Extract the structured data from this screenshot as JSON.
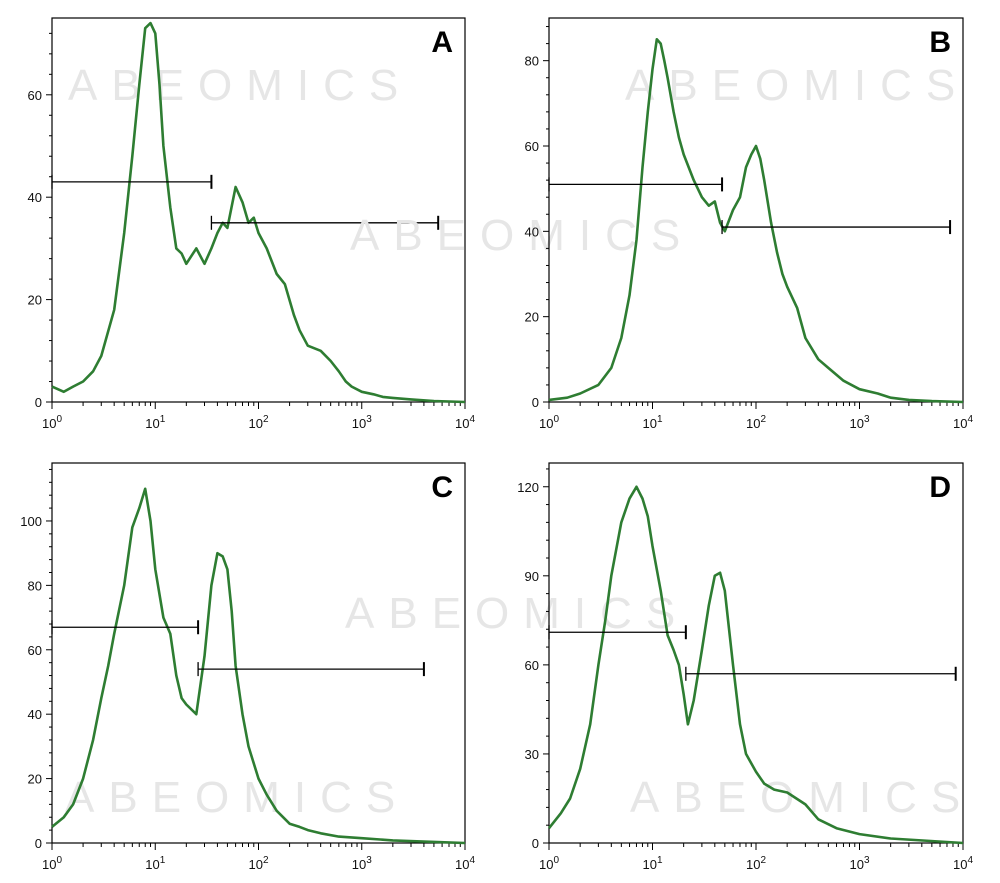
{
  "watermark": "ABEOMICS",
  "colors": {
    "curve": "#2e7d32",
    "axis": "#000000",
    "gate": "#000000"
  },
  "chart_data": [
    {
      "type": "line",
      "label": "A",
      "xscale": "log",
      "xlim": [
        1,
        10000
      ],
      "ylim": [
        0,
        75
      ],
      "xticks": [
        "10^0",
        "10^1",
        "10^2",
        "10^3",
        "10^4"
      ],
      "yticks": [
        0,
        20,
        40,
        60
      ],
      "series": [
        {
          "name": "histogram",
          "x": [
            1,
            1.3,
            1.6,
            2,
            2.5,
            3,
            4,
            5,
            6,
            7,
            8,
            9,
            10,
            11,
            12,
            14,
            16,
            18,
            20,
            25,
            30,
            35,
            40,
            45,
            50,
            60,
            70,
            80,
            90,
            100,
            120,
            150,
            180,
            220,
            250,
            300,
            400,
            500,
            600,
            700,
            800,
            1000,
            1300,
            1600,
            2000,
            3000,
            5000,
            10000
          ],
          "y": [
            3,
            2,
            3,
            4,
            6,
            9,
            18,
            33,
            48,
            62,
            73,
            74,
            72,
            62,
            50,
            38,
            30,
            29,
            27,
            30,
            27,
            30,
            33,
            35,
            34,
            42,
            39,
            35,
            36,
            33,
            30,
            25,
            23,
            17,
            14,
            11,
            10,
            8,
            6,
            4,
            3,
            2,
            1.5,
            1,
            0.8,
            0.5,
            0.2,
            0
          ]
        }
      ],
      "gates": [
        {
          "from": 1,
          "to": 35,
          "y": 43
        },
        {
          "from": 35,
          "to": 5500,
          "y": 35
        }
      ]
    },
    {
      "type": "line",
      "label": "B",
      "xscale": "log",
      "xlim": [
        1,
        10000
      ],
      "ylim": [
        0,
        90
      ],
      "xticks": [
        "10^0",
        "10^1",
        "10^2",
        "10^3",
        "10^4"
      ],
      "yticks": [
        0,
        20,
        40,
        60,
        80
      ],
      "series": [
        {
          "name": "histogram",
          "x": [
            1,
            1.5,
            2,
            3,
            4,
            5,
            6,
            7,
            8,
            9,
            10,
            11,
            12,
            13,
            14,
            16,
            18,
            20,
            25,
            30,
            35,
            40,
            45,
            50,
            60,
            70,
            80,
            90,
            100,
            110,
            120,
            140,
            160,
            180,
            200,
            250,
            300,
            400,
            500,
            700,
            1000,
            1500,
            2000,
            3000,
            5000,
            10000
          ],
          "y": [
            0.5,
            1,
            2,
            4,
            8,
            15,
            25,
            38,
            55,
            68,
            78,
            85,
            84,
            80,
            76,
            68,
            62,
            58,
            52,
            48,
            46,
            47,
            42,
            40,
            45,
            48,
            55,
            58,
            60,
            57,
            52,
            42,
            35,
            30,
            27,
            22,
            15,
            10,
            8,
            5,
            3,
            2,
            1,
            0.5,
            0.2,
            0
          ]
        }
      ],
      "gates": [
        {
          "from": 1,
          "to": 47,
          "y": 51
        },
        {
          "from": 47,
          "to": 7500,
          "y": 41
        }
      ]
    },
    {
      "type": "line",
      "label": "C",
      "xscale": "log",
      "xlim": [
        1,
        10000
      ],
      "ylim": [
        0,
        118
      ],
      "xticks": [
        "10^0",
        "10^1",
        "10^2",
        "10^3",
        "10^4"
      ],
      "yticks": [
        0,
        20,
        40,
        60,
        80,
        100
      ],
      "series": [
        {
          "name": "histogram",
          "x": [
            1,
            1.3,
            1.6,
            2,
            2.5,
            3,
            3.5,
            4,
            5,
            6,
            7,
            8,
            9,
            10,
            12,
            14,
            16,
            18,
            20,
            25,
            30,
            35,
            40,
            45,
            50,
            55,
            60,
            70,
            80,
            100,
            120,
            150,
            200,
            250,
            300,
            400,
            600,
            1000,
            2000,
            10000
          ],
          "y": [
            5,
            8,
            12,
            20,
            32,
            45,
            55,
            65,
            80,
            98,
            104,
            110,
            100,
            85,
            70,
            65,
            52,
            45,
            43,
            40,
            58,
            80,
            90,
            89,
            85,
            72,
            55,
            40,
            30,
            20,
            15,
            10,
            6,
            5,
            4,
            3,
            2,
            1.5,
            0.8,
            0
          ]
        }
      ],
      "gates": [
        {
          "from": 1,
          "to": 26,
          "y": 67
        },
        {
          "from": 26,
          "to": 4000,
          "y": 54
        }
      ]
    },
    {
      "type": "line",
      "label": "D",
      "xscale": "log",
      "xlim": [
        1,
        10000
      ],
      "ylim": [
        0,
        128
      ],
      "xticks": [
        "10^0",
        "10^1",
        "10^2",
        "10^3",
        "10^4"
      ],
      "yticks": [
        0,
        30,
        60,
        90,
        120
      ],
      "series": [
        {
          "name": "histogram",
          "x": [
            1,
            1.3,
            1.6,
            2,
            2.5,
            3,
            3.5,
            4,
            5,
            6,
            7,
            8,
            9,
            10,
            12,
            14,
            16,
            18,
            20,
            22,
            25,
            30,
            35,
            40,
            45,
            50,
            60,
            70,
            80,
            100,
            120,
            150,
            200,
            300,
            400,
            600,
            1000,
            2000,
            10000
          ],
          "y": [
            5,
            10,
            15,
            25,
            40,
            60,
            75,
            90,
            108,
            116,
            120,
            116,
            110,
            100,
            85,
            70,
            65,
            60,
            50,
            40,
            48,
            65,
            80,
            90,
            91,
            85,
            60,
            40,
            30,
            24,
            20,
            18,
            17,
            13,
            8,
            5,
            3,
            1.5,
            0
          ]
        }
      ],
      "gates": [
        {
          "from": 1,
          "to": 21,
          "y": 71
        },
        {
          "from": 21,
          "to": 8500,
          "y": 57
        }
      ]
    }
  ]
}
